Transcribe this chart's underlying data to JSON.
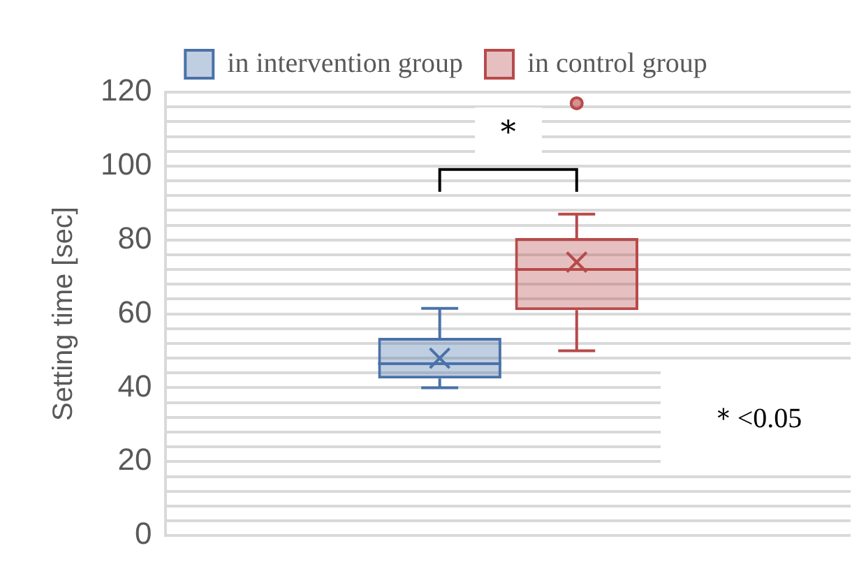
{
  "chart_data": {
    "type": "box",
    "categories": [
      null
    ],
    "ylabel": "Setting time [sec]",
    "ylim": [
      0,
      120
    ],
    "yticks": [
      0,
      {
        "value": 4,
        "label": null
      },
      {
        "value": 8,
        "label": null
      },
      {
        "value": 12,
        "label": null
      },
      {
        "value": 16,
        "label": null
      },
      20,
      {
        "value": 24,
        "label": null
      },
      {
        "value": 28,
        "label": null
      },
      {
        "value": 32,
        "label": null
      },
      {
        "value": 36,
        "label": null
      },
      40,
      {
        "value": 44,
        "label": null
      },
      {
        "value": 48,
        "label": null
      },
      {
        "value": 52,
        "label": null
      },
      {
        "value": 56,
        "label": null
      },
      60,
      {
        "value": 64,
        "label": null
      },
      {
        "value": 68,
        "label": null
      },
      {
        "value": 72,
        "label": null
      },
      {
        "value": 76,
        "label": null
      },
      80,
      {
        "value": 84,
        "label": null
      },
      {
        "value": 88,
        "label": null
      },
      {
        "value": 92,
        "label": null
      },
      {
        "value": 96,
        "label": null
      },
      100,
      {
        "value": 104,
        "label": null
      },
      {
        "value": 108,
        "label": null
      },
      {
        "value": 112,
        "label": null
      },
      {
        "value": 116,
        "label": null
      },
      120
    ],
    "grid": "y",
    "legend": "top",
    "series": [
      {
        "name": "in intervention group",
        "color": "#4a72a8",
        "boxes": [
          {
            "low": 40,
            "q1": 42.5,
            "median": 46.5,
            "q3": 53.5,
            "high": 61.5,
            "mean": 48
          }
        ]
      },
      {
        "name": "in control group",
        "color": "#b84a4a",
        "boxes": [
          {
            "low": 50,
            "q1": 61,
            "median": 72,
            "q3": 80.5,
            "high": 87,
            "mean": 74,
            "outliers": [
              117
            ]
          }
        ]
      }
    ],
    "annotations": [
      "*",
      "＊<0.05"
    ]
  }
}
